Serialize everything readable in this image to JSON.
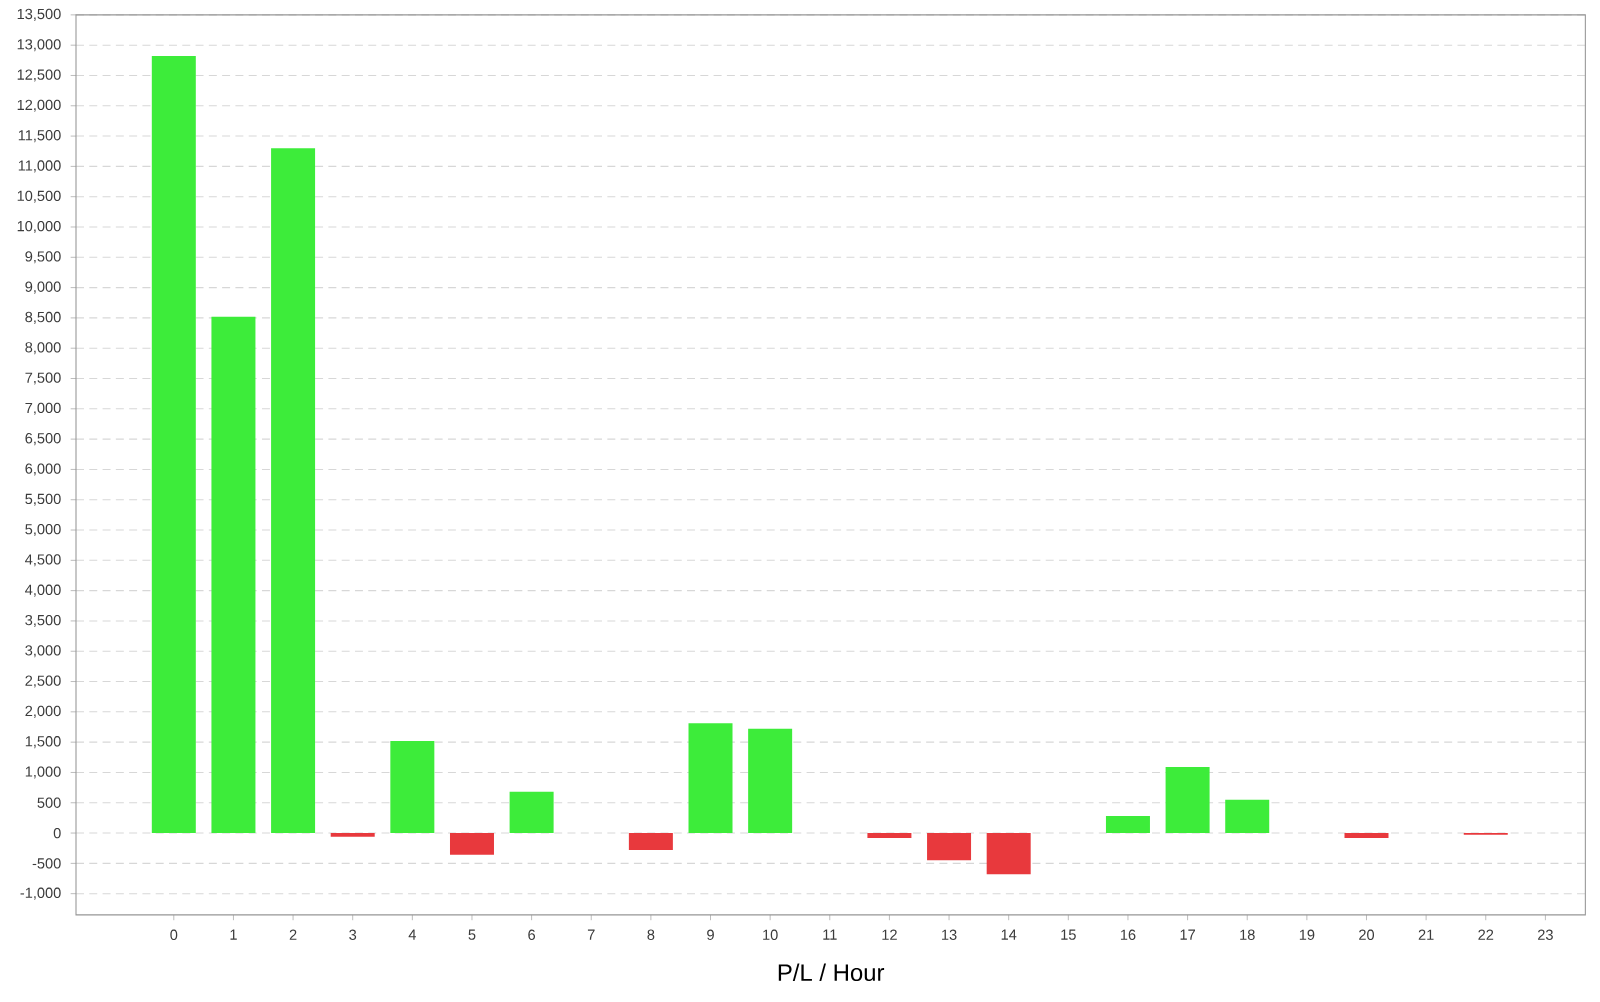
{
  "chart_data": {
    "type": "bar",
    "xlabel": "P/L / Hour",
    "categories": [
      "0",
      "1",
      "2",
      "3",
      "4",
      "5",
      "6",
      "7",
      "8",
      "9",
      "10",
      "11",
      "12",
      "13",
      "14",
      "15",
      "16",
      "17",
      "18",
      "19",
      "20",
      "21",
      "22",
      "23"
    ],
    "values": [
      12820,
      8520,
      11300,
      -60,
      1520,
      -360,
      680,
      0,
      -280,
      1810,
      1720,
      0,
      -80,
      -450,
      -680,
      0,
      280,
      1090,
      550,
      0,
      -80,
      0,
      -30,
      0
    ],
    "colors": [
      "#3dec3a",
      "#3dec3a",
      "#3dec3a",
      "#e8393d",
      "#3dec3a",
      "#e8393d",
      "#3dec3a",
      "#3dec3a",
      "#e8393d",
      "#3dec3a",
      "#3dec3a",
      "#3dec3a",
      "#e8393d",
      "#e8393d",
      "#e8393d",
      "#3dec3a",
      "#3dec3a",
      "#3dec3a",
      "#3dec3a",
      "#3dec3a",
      "#e8393d",
      "#3dec3a",
      "#e8393d",
      "#3dec3a"
    ],
    "ylim": [
      -1350,
      13500
    ],
    "yticks": [
      {
        "value": -1000,
        "label": "-1,000"
      },
      {
        "value": -500,
        "label": "-500"
      },
      0,
      500,
      {
        "value": 1000,
        "label": "1,000"
      },
      {
        "value": 1500,
        "label": "1,500"
      },
      {
        "value": 2000,
        "label": "2,000"
      },
      {
        "value": 2500,
        "label": "2,500"
      },
      {
        "value": 3000,
        "label": "3,000"
      },
      {
        "value": 3500,
        "label": "3,500"
      },
      {
        "value": 4000,
        "label": "4,000"
      },
      {
        "value": 4500,
        "label": "4,500"
      },
      {
        "value": 5000,
        "label": "5,000"
      },
      {
        "value": 5500,
        "label": "5,500"
      },
      {
        "value": 6000,
        "label": "6,000"
      },
      {
        "value": 6500,
        "label": "6,500"
      },
      {
        "value": 7000,
        "label": "7,000"
      },
      {
        "value": 7500,
        "label": "7,500"
      },
      {
        "value": 8000,
        "label": "8,000"
      },
      {
        "value": 8500,
        "label": "8,500"
      },
      {
        "value": 9000,
        "label": "9,000"
      },
      {
        "value": 9500,
        "label": "9,500"
      },
      {
        "value": 10000,
        "label": "10,000"
      },
      {
        "value": 10500,
        "label": "10,500"
      },
      {
        "value": 11000,
        "label": "11,000"
      },
      {
        "value": 11500,
        "label": "11,500"
      },
      {
        "value": 12000,
        "label": "12,000"
      },
      {
        "value": 12500,
        "label": "12,500"
      },
      {
        "value": 13000,
        "label": "13,000"
      },
      {
        "value": 13500,
        "label": "13,500"
      }
    ],
    "grid": "y"
  }
}
